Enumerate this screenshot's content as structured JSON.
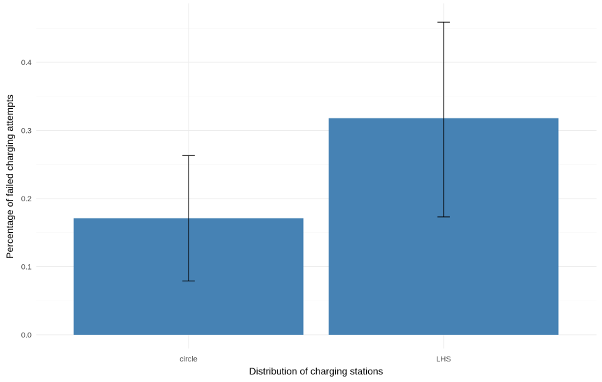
{
  "chart_data": {
    "type": "bar",
    "title": "",
    "xlabel": "Distribution of charging stations",
    "ylabel": "Percentage of failed charging attempts",
    "categories": [
      "circle",
      "LHS"
    ],
    "values": [
      0.171,
      0.318
    ],
    "error_bars": {
      "lower": [
        0.079,
        0.173
      ],
      "upper": [
        0.263,
        0.459
      ]
    },
    "ylim": [
      0,
      0.475
    ],
    "yticks": [
      0.0,
      0.1,
      0.2,
      0.3,
      0.4
    ],
    "ytick_labels": [
      "0.0",
      "0.1",
      "0.2",
      "0.3",
      "0.4"
    ],
    "grid": true,
    "legend": "none",
    "colors": {
      "bar": "#4682b4",
      "grid_major": "#ebebeb",
      "grid_minor": "#f5f5f5",
      "error_bar": "#000000"
    }
  }
}
